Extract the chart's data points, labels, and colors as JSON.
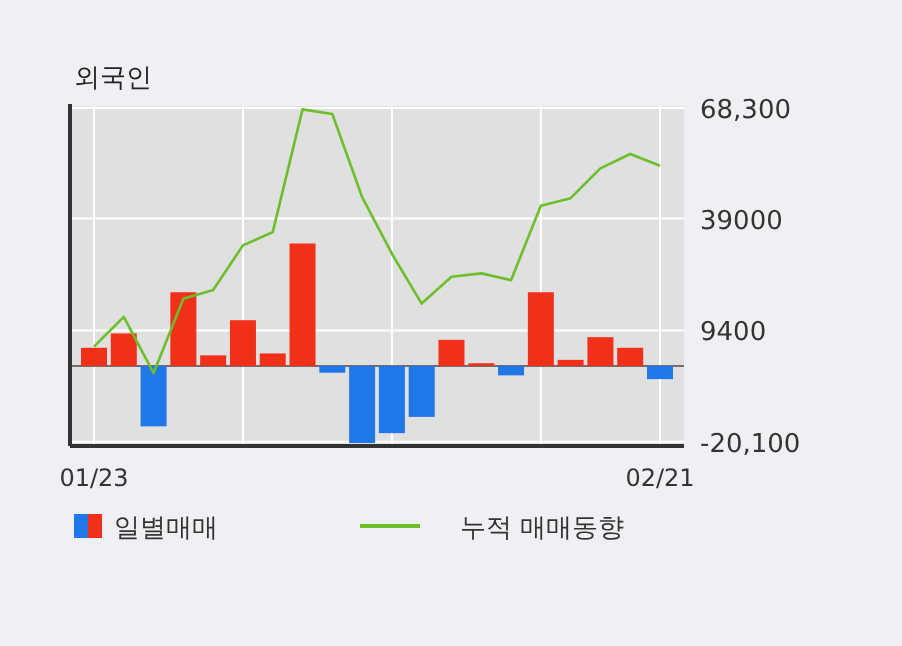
{
  "chart_data": {
    "type": "bar",
    "title": "외국인",
    "categories": [
      "01/23",
      null,
      null,
      null,
      null,
      null,
      null,
      null,
      null,
      null,
      null,
      null,
      null,
      null,
      null,
      null,
      null,
      null,
      null,
      "02/21"
    ],
    "series": [
      {
        "name": "일별매매",
        "colors": [
          "#f03018",
          "#f03018",
          "#1f77e8",
          "#f03018",
          "#f03018",
          "#f03018",
          "#f03018",
          "#f03018",
          "#1f77e8",
          "#1f77e8",
          "#1f77e8",
          "#1f77e8",
          "#f03018",
          "#f03018",
          "#1f77e8",
          "#f03018",
          "#f03018",
          "#f03018",
          "#f03018",
          "#1f77e8"
        ],
        "values": [
          4800,
          8600,
          -16000,
          19500,
          2800,
          12100,
          3300,
          32400,
          -1800,
          -20400,
          -17800,
          -13500,
          6900,
          700,
          -2500,
          19500,
          1600,
          7600,
          4800,
          -3500
        ]
      },
      {
        "name": "누적 매매동향",
        "type": "line",
        "color": "#6cbf2a",
        "values": [
          5100,
          13000,
          -1900,
          17800,
          20100,
          31900,
          35400,
          67900,
          66700,
          44700,
          29700,
          16500,
          23600,
          24500,
          22700,
          42400,
          44400,
          52300,
          56100,
          53000
        ]
      }
    ],
    "ylim": [
      -21200,
      68800
    ],
    "yticks": [
      {
        "value": 68300,
        "label": "68,300"
      },
      39000,
      9400,
      {
        "value": -20100,
        "label": "-20,100"
      }
    ],
    "grid": true,
    "legend": "bottom"
  }
}
